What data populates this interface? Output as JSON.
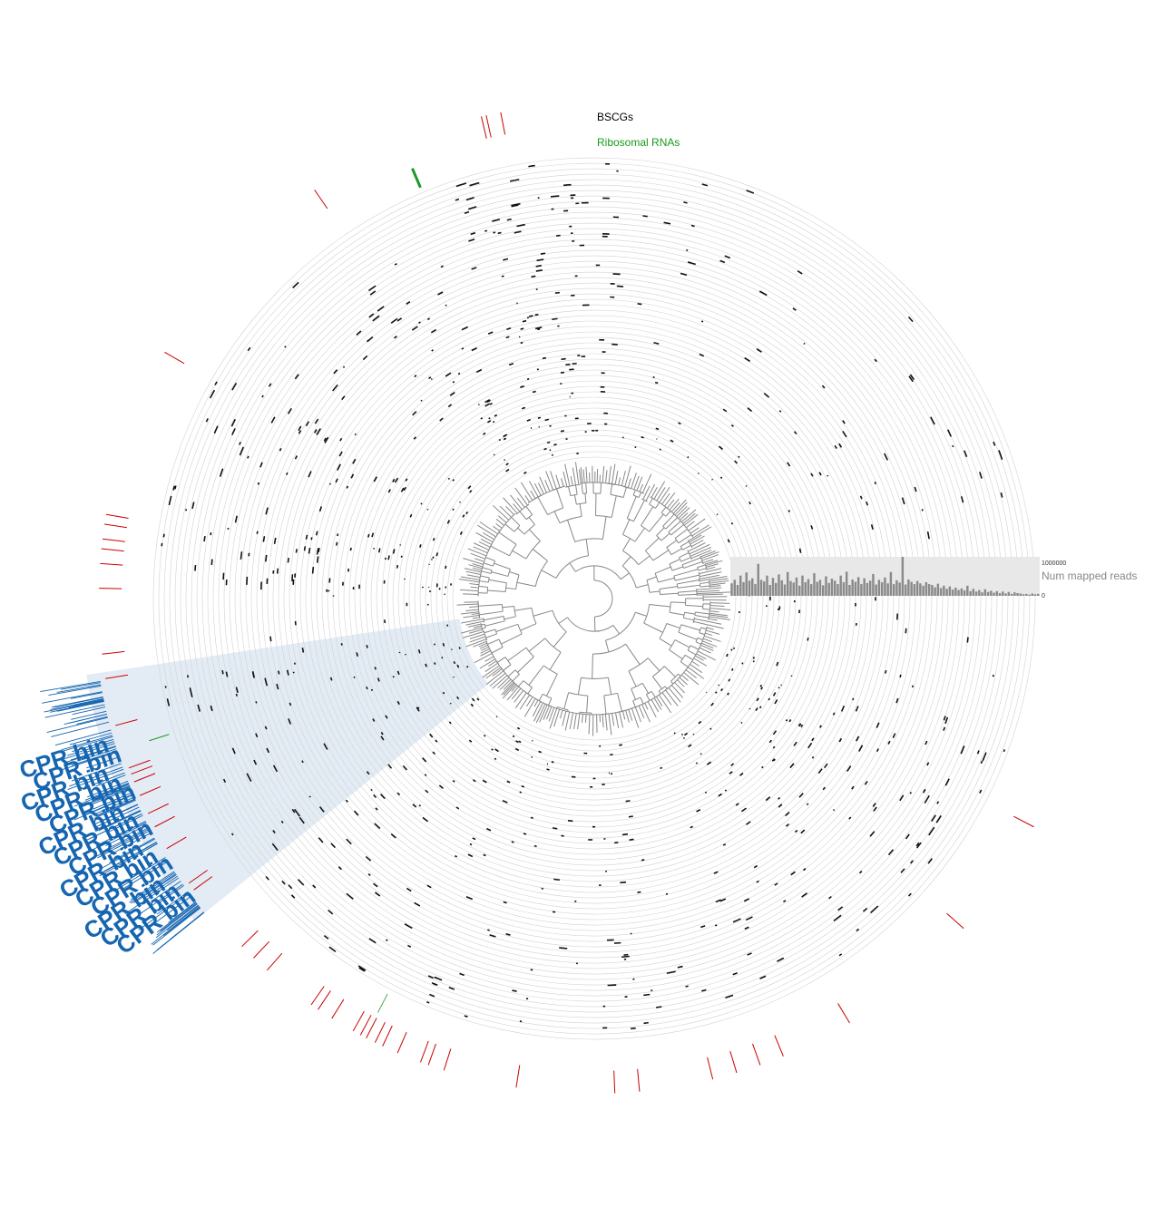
{
  "labels": {
    "bscgs": "BSCGs",
    "ribosomal": "Ribosomal RNAs",
    "num_mapped_reads": "Num mapped reads",
    "bar_max": "1000000",
    "bar_min": "0",
    "bin_label": "CPR bin"
  },
  "colors": {
    "bscg_ring": "#e6e6e6",
    "bscg_hit": "#cc0000",
    "rrna_ring": "#b3e6bb",
    "rrna_hit": "#1a9a2a",
    "rrna_text": "#1a9a1a",
    "heatmap_bg": "#bdbdbd",
    "heatmap_mark": "#111111",
    "tree": "#888888",
    "bin": "#1565b0",
    "bar_bg": "#e8e8e8",
    "bar": "#8a8a8a",
    "gray_text": "#888888"
  },
  "layers": [
    "heatmap",
    "ribosomal-rnas",
    "bscgs"
  ],
  "bin": {
    "name": "CPR bin",
    "repeats": 14
  },
  "chart_data": {
    "type": "bar",
    "title": "",
    "ylabel": "Num mapped reads",
    "ylim": [
      0,
      1000000
    ],
    "values": [
      320000,
      410000,
      280000,
      520000,
      350000,
      600000,
      390000,
      450000,
      300000,
      820000,
      410000,
      370000,
      520000,
      280000,
      460000,
      330000,
      550000,
      400000,
      290000,
      610000,
      380000,
      340000,
      470000,
      260000,
      520000,
      350000,
      430000,
      300000,
      580000,
      360000,
      410000,
      270000,
      500000,
      330000,
      440000,
      390000,
      300000,
      520000,
      350000,
      620000,
      280000,
      420000,
      360000,
      480000,
      300000,
      450000,
      330000,
      390000,
      560000,
      290000,
      410000,
      350000,
      470000,
      320000,
      610000,
      300000,
      400000,
      340000,
      1000000,
      290000,
      420000,
      360000,
      300000,
      380000,
      320000,
      260000,
      350000,
      300000,
      280000,
      220000,
      310000,
      200000,
      260000,
      180000,
      240000,
      160000,
      210000,
      150000,
      190000,
      140000,
      260000,
      120000,
      180000,
      110000,
      150000,
      90000,
      170000,
      100000,
      130000,
      80000,
      120000,
      70000,
      110000,
      60000,
      100000,
      50000,
      90000,
      70000,
      60000,
      40000,
      50000,
      30000,
      60000,
      40000,
      50000
    ]
  }
}
